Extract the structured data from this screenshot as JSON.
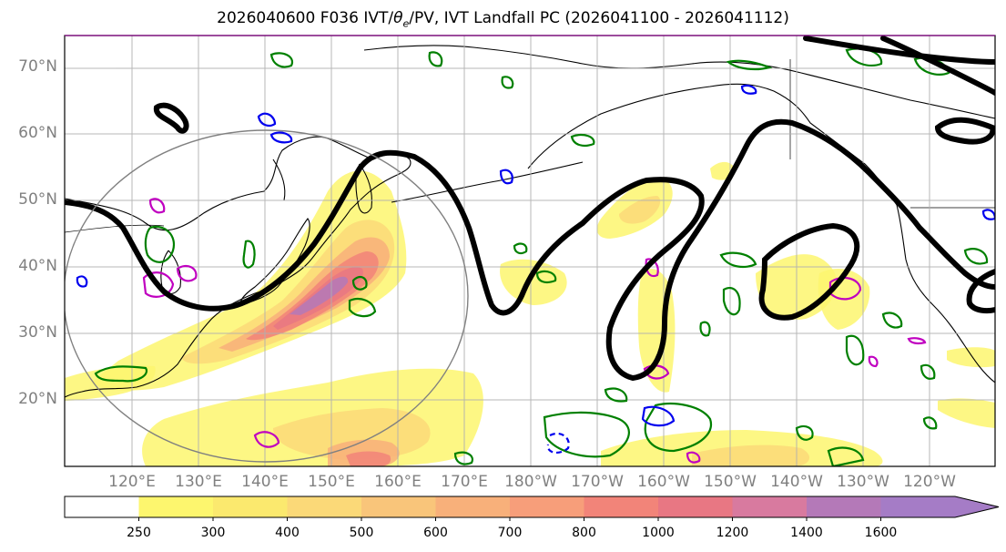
{
  "title": {
    "prefix": "2026040600 F036 IVT/",
    "theta": "θ",
    "theta_sub": "e",
    "suffix": "/PV, IVT Landfall PC (2026041100 - 2026041112)"
  },
  "lat_labels": [
    "70°N",
    "60°N",
    "50°N",
    "40°N",
    "30°N",
    "20°N"
  ],
  "lon_labels": [
    "120°E",
    "130°E",
    "140°E",
    "150°E",
    "160°E",
    "170°E",
    "180°W",
    "170°W",
    "160°W",
    "150°W",
    "140°W",
    "130°W",
    "120°W"
  ],
  "colorbar": {
    "ticks": [
      "250",
      "300",
      "400",
      "500",
      "600",
      "700",
      "800",
      "1000",
      "1200",
      "1400",
      "1600"
    ],
    "colors": [
      "#ffffff",
      "#fdf66e",
      "#fbe96e",
      "#fbd978",
      "#f9c57a",
      "#f8b07a",
      "#f79e7a",
      "#f28479",
      "#e87783",
      "#d87a9f",
      "#b479b8",
      "#a57cc6"
    ]
  },
  "layers": {
    "ivt_colors": [
      "#fdf66e",
      "#fbd978",
      "#f8b07a",
      "#f28479",
      "#e87783",
      "#b479b8"
    ],
    "theta_e_color": "#000000",
    "pv_positive_color": "#008000",
    "pv_negative_color": "#0000ee",
    "pv_high_color": "#c000c0",
    "circle_color": "#808080"
  }
}
